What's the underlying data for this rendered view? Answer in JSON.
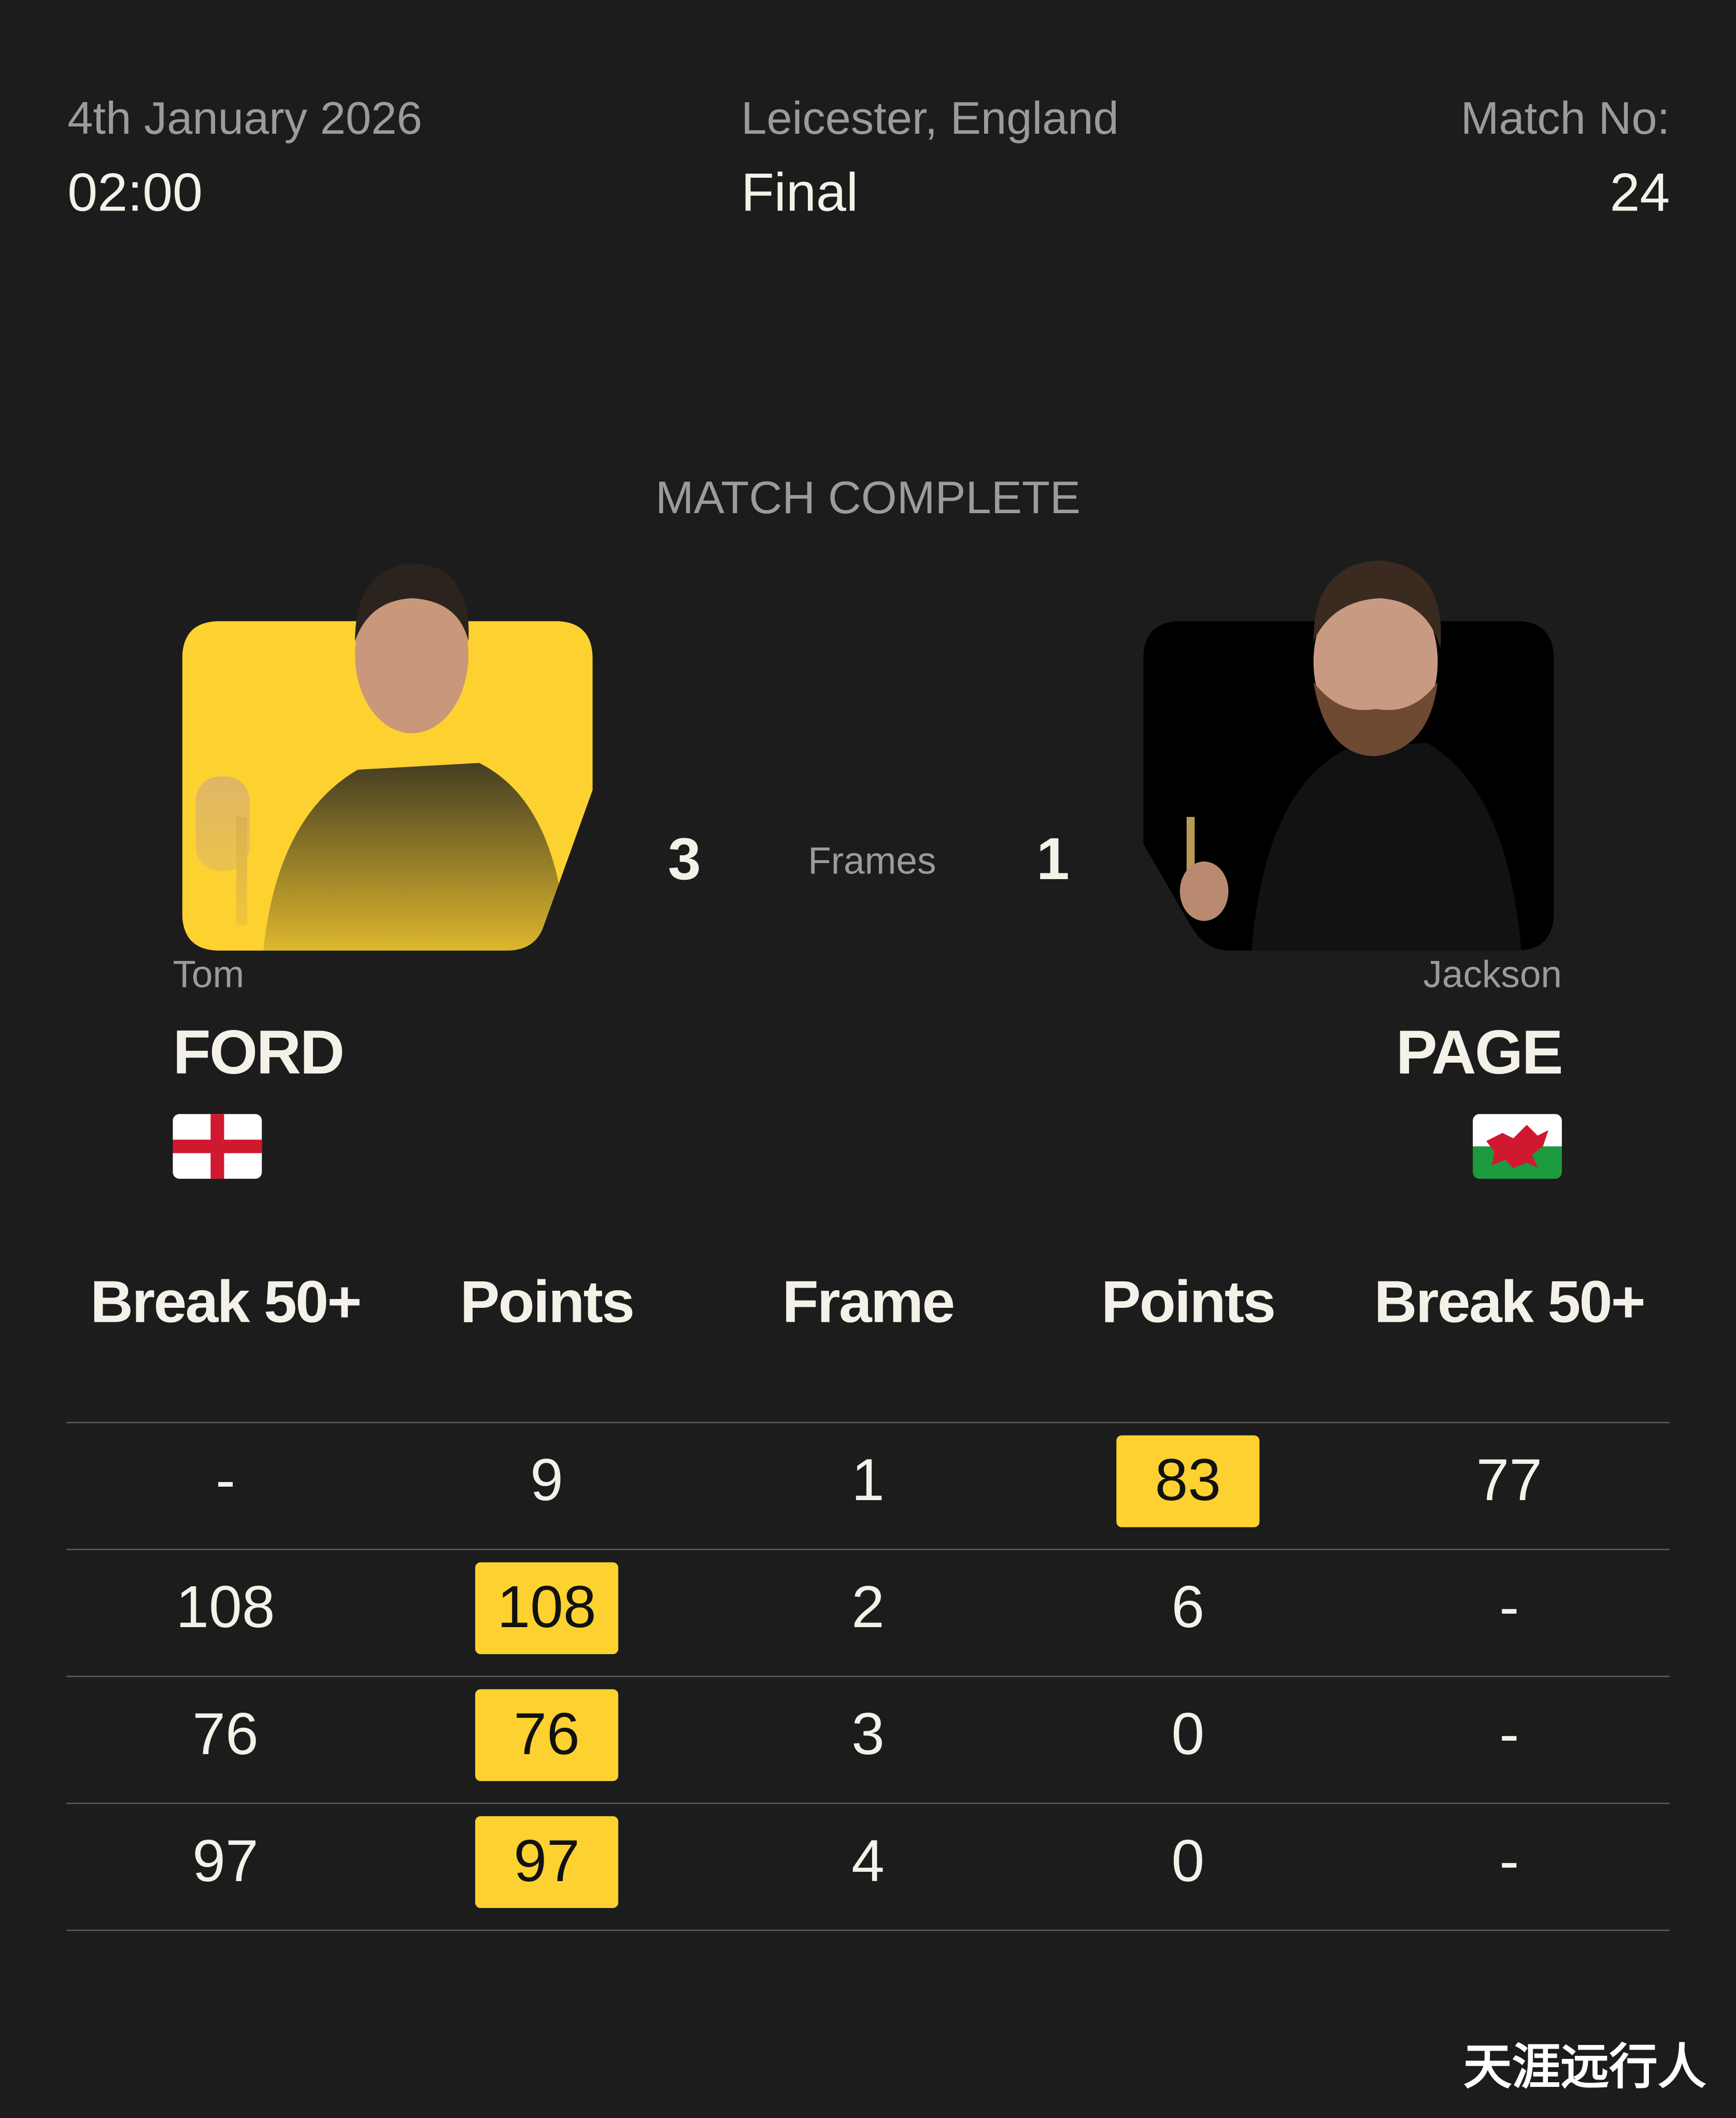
{
  "header": {
    "date": "4th January 2026",
    "time": "02:00",
    "venue": "Leicester, England",
    "round": "Final",
    "match_no_label": "Match No:",
    "match_no": "24"
  },
  "status": "MATCH COMPLETE",
  "score": {
    "left": "3",
    "label": "Frames",
    "right": "1"
  },
  "players": {
    "left": {
      "first": "Tom",
      "last": "FORD",
      "flag": "england-flag",
      "card_color": "#fdd130"
    },
    "right": {
      "first": "Jackson",
      "last": "PAGE",
      "flag": "wales-flag",
      "card_color": "#000000"
    }
  },
  "table": {
    "headers": [
      "Break 50+",
      "Points",
      "Frame",
      "Points",
      "Break 50+"
    ],
    "rows": [
      {
        "left_break": "-",
        "left_points": "9",
        "frame": "1",
        "right_points": "83",
        "right_break": "77",
        "winner": "right"
      },
      {
        "left_break": "108",
        "left_points": "108",
        "frame": "2",
        "right_points": "6",
        "right_break": "-",
        "winner": "left"
      },
      {
        "left_break": "76",
        "left_points": "76",
        "frame": "3",
        "right_points": "0",
        "right_break": "-",
        "winner": "left"
      },
      {
        "left_break": "97",
        "left_points": "97",
        "frame": "4",
        "right_points": "0",
        "right_break": "-",
        "winner": "left"
      }
    ],
    "highlight_color": "#fdd130"
  },
  "watermark": "天涯远行人"
}
